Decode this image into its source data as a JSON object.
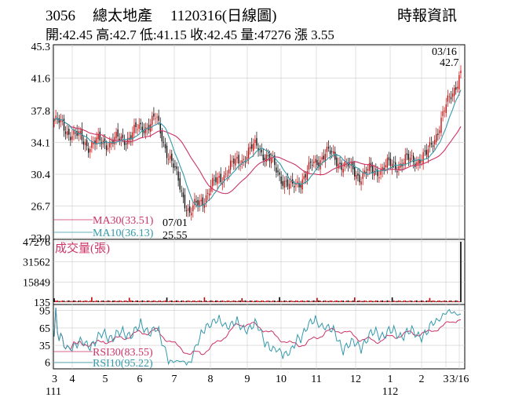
{
  "header": {
    "stock_code": "3056",
    "stock_name": "總太地產",
    "date_label": "1120316(日線圖)",
    "source": "時報資訊",
    "quote_line": "開:42.45 高:42.7 低:41.15 收:42.45 量:47276 漲 3.55"
  },
  "chart_data": [
    {
      "type": "line",
      "panel": "price",
      "y_ticks": [
        "45.3",
        "41.6",
        "37.8",
        "34.1",
        "30.4",
        "26.7",
        "23.0"
      ],
      "ylim": [
        23.0,
        45.3
      ],
      "grid": true,
      "candles": {
        "dates_range": [
          "111/03",
          "112/03/16"
        ],
        "samples": [
          {
            "month": "3",
            "close": 36.6
          },
          {
            "month": "4",
            "close": 33.9
          },
          {
            "month": "5",
            "close": 34.4
          },
          {
            "month": "6",
            "close": 36.8
          },
          {
            "month": "7",
            "close": 25.8
          },
          {
            "month": "8",
            "close": 30.5
          },
          {
            "month": "9",
            "close": 33.8
          },
          {
            "month": "10",
            "close": 28.6
          },
          {
            "month": "11",
            "close": 33.0
          },
          {
            "month": "12",
            "close": 30.3
          },
          {
            "month": "1",
            "close": 31.5
          },
          {
            "month": "2",
            "close": 32.5
          },
          {
            "month": "3",
            "close": 42.45
          }
        ]
      },
      "series": [
        {
          "name": "MA30",
          "value_label": "MA30(33.51)",
          "color": "#cc3366"
        },
        {
          "name": "MA10",
          "value_label": "MA10(36.13)",
          "color": "#3399aa"
        }
      ],
      "annotations": [
        {
          "label": "07/01",
          "value": "25.55"
        },
        {
          "label": "03/16",
          "value": "42.7"
        }
      ]
    },
    {
      "type": "bar",
      "panel": "volume",
      "title": "成交量(張)",
      "y_ticks": [
        "47276",
        "31562",
        "15849",
        "135"
      ],
      "ylim": [
        135,
        47276
      ],
      "last_value": 47276
    },
    {
      "type": "line",
      "panel": "rsi",
      "y_ticks": [
        "95",
        "65",
        "35",
        "6"
      ],
      "ylim": [
        0,
        100
      ],
      "series": [
        {
          "name": "RSI30",
          "value_label": "RSI30(83.55)",
          "color": "#cc3366"
        },
        {
          "name": "RSI10",
          "value_label": "RSI10(95.22)",
          "color": "#3399aa"
        }
      ]
    }
  ],
  "x_axis": {
    "months": [
      "3",
      "4",
      "5",
      "6",
      "7",
      "8",
      "9",
      "10",
      "11",
      "12",
      "1",
      "2",
      "3",
      "3/16"
    ],
    "years": [
      "111",
      "112"
    ]
  },
  "colors": {
    "up": "#cc0000",
    "down": "#000000",
    "ma30": "#cc3366",
    "ma10": "#3399aa",
    "grid": "#cccccc"
  }
}
